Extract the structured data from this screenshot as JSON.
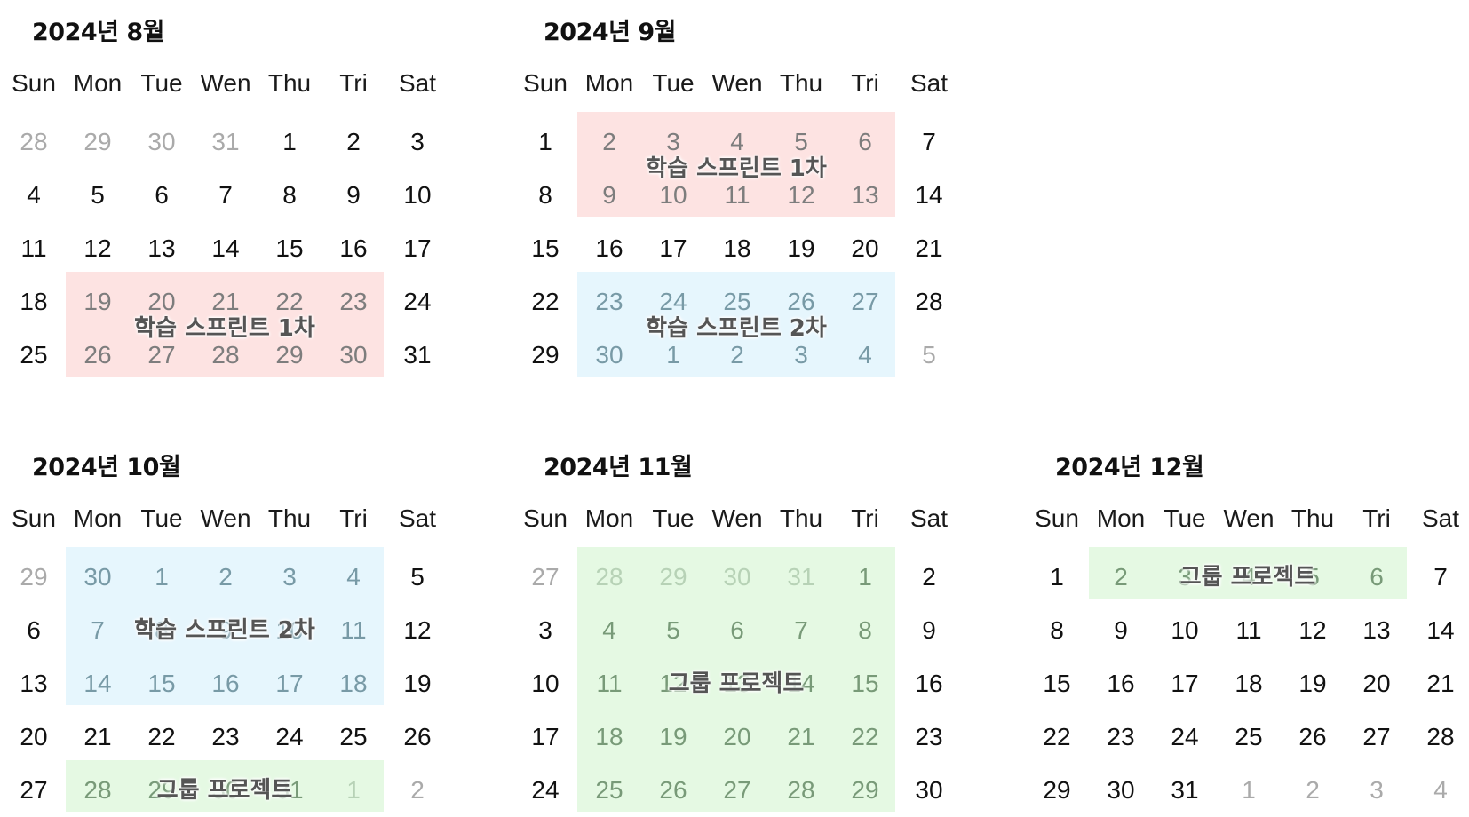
{
  "weekdays": [
    "Sun",
    "Mon",
    "Tue",
    "Wen",
    "Thu",
    "Tri",
    "Sat"
  ],
  "colors": {
    "red": "#fde3e2",
    "blue": "#e6f6fd",
    "green": "#e5f9e3"
  },
  "months": [
    {
      "title": "2024년 8월",
      "weeks": [
        [
          {
            "n": "28",
            "o": true
          },
          {
            "n": "29",
            "o": true
          },
          {
            "n": "30",
            "o": true
          },
          {
            "n": "31",
            "o": true
          },
          {
            "n": "1"
          },
          {
            "n": "2"
          },
          {
            "n": "3"
          }
        ],
        [
          {
            "n": "4"
          },
          {
            "n": "5"
          },
          {
            "n": "6"
          },
          {
            "n": "7"
          },
          {
            "n": "8"
          },
          {
            "n": "9"
          },
          {
            "n": "10"
          }
        ],
        [
          {
            "n": "11"
          },
          {
            "n": "12"
          },
          {
            "n": "13"
          },
          {
            "n": "14"
          },
          {
            "n": "15"
          },
          {
            "n": "16"
          },
          {
            "n": "17"
          }
        ],
        [
          {
            "n": "18"
          },
          {
            "n": "19"
          },
          {
            "n": "20"
          },
          {
            "n": "21"
          },
          {
            "n": "22"
          },
          {
            "n": "23"
          },
          {
            "n": "24"
          }
        ],
        [
          {
            "n": "25"
          },
          {
            "n": "26"
          },
          {
            "n": "27"
          },
          {
            "n": "28"
          },
          {
            "n": "29"
          },
          {
            "n": "30"
          },
          {
            "n": "31"
          }
        ]
      ],
      "events": [
        {
          "label": "학습 스프린트 1차",
          "color": "red",
          "row_start": 3,
          "row_end": 4,
          "col_start": 1,
          "col_end": 5
        }
      ]
    },
    {
      "title": "2024년 9월",
      "weeks": [
        [
          {
            "n": "1"
          },
          {
            "n": "2"
          },
          {
            "n": "3"
          },
          {
            "n": "4"
          },
          {
            "n": "5"
          },
          {
            "n": "6"
          },
          {
            "n": "7"
          }
        ],
        [
          {
            "n": "8"
          },
          {
            "n": "9"
          },
          {
            "n": "10"
          },
          {
            "n": "11"
          },
          {
            "n": "12"
          },
          {
            "n": "13"
          },
          {
            "n": "14"
          }
        ],
        [
          {
            "n": "15"
          },
          {
            "n": "16"
          },
          {
            "n": "17"
          },
          {
            "n": "18"
          },
          {
            "n": "19"
          },
          {
            "n": "20"
          },
          {
            "n": "21"
          }
        ],
        [
          {
            "n": "22"
          },
          {
            "n": "23"
          },
          {
            "n": "24"
          },
          {
            "n": "25"
          },
          {
            "n": "26"
          },
          {
            "n": "27"
          },
          {
            "n": "28"
          }
        ],
        [
          {
            "n": "29"
          },
          {
            "n": "30"
          },
          {
            "n": "1",
            "o": true
          },
          {
            "n": "2",
            "o": true
          },
          {
            "n": "3",
            "o": true
          },
          {
            "n": "4",
            "o": true
          },
          {
            "n": "5",
            "o": true
          }
        ]
      ],
      "events": [
        {
          "label": "학습 스프린트 1차",
          "color": "red",
          "row_start": 0,
          "row_end": 1,
          "col_start": 1,
          "col_end": 5
        },
        {
          "label": "학습 스프린트 2차",
          "color": "blue",
          "row_start": 3,
          "row_end": 4,
          "col_start": 1,
          "col_end": 5
        }
      ]
    },
    {
      "title": "2024년 10월",
      "weeks": [
        [
          {
            "n": "29",
            "o": true
          },
          {
            "n": "30",
            "o": true
          },
          {
            "n": "1"
          },
          {
            "n": "2"
          },
          {
            "n": "3"
          },
          {
            "n": "4"
          },
          {
            "n": "5"
          }
        ],
        [
          {
            "n": "6"
          },
          {
            "n": "7"
          },
          {
            "n": "8"
          },
          {
            "n": "9"
          },
          {
            "n": "10"
          },
          {
            "n": "11"
          },
          {
            "n": "12"
          }
        ],
        [
          {
            "n": "13"
          },
          {
            "n": "14"
          },
          {
            "n": "15"
          },
          {
            "n": "16"
          },
          {
            "n": "17"
          },
          {
            "n": "18"
          },
          {
            "n": "19"
          }
        ],
        [
          {
            "n": "20"
          },
          {
            "n": "21"
          },
          {
            "n": "22"
          },
          {
            "n": "23"
          },
          {
            "n": "24"
          },
          {
            "n": "25"
          },
          {
            "n": "26"
          }
        ],
        [
          {
            "n": "27"
          },
          {
            "n": "28"
          },
          {
            "n": "29"
          },
          {
            "n": "30"
          },
          {
            "n": "31"
          },
          {
            "n": "1",
            "o": true
          },
          {
            "n": "2",
            "o": true
          }
        ]
      ],
      "events": [
        {
          "label": "학습 스프린트 2차",
          "color": "blue",
          "row_start": 0,
          "row_end": 2,
          "col_start": 1,
          "col_end": 5
        },
        {
          "label": "그룹 프로젝트",
          "color": "green",
          "row_start": 4,
          "row_end": 4,
          "col_start": 1,
          "col_end": 5
        }
      ]
    },
    {
      "title": "2024년 11월",
      "weeks": [
        [
          {
            "n": "27",
            "o": true
          },
          {
            "n": "28",
            "o": true
          },
          {
            "n": "29",
            "o": true
          },
          {
            "n": "30",
            "o": true
          },
          {
            "n": "31",
            "o": true
          },
          {
            "n": "1"
          },
          {
            "n": "2"
          }
        ],
        [
          {
            "n": "3"
          },
          {
            "n": "4"
          },
          {
            "n": "5"
          },
          {
            "n": "6"
          },
          {
            "n": "7"
          },
          {
            "n": "8"
          },
          {
            "n": "9"
          }
        ],
        [
          {
            "n": "10"
          },
          {
            "n": "11"
          },
          {
            "n": "12"
          },
          {
            "n": "13"
          },
          {
            "n": "14"
          },
          {
            "n": "15"
          },
          {
            "n": "16"
          }
        ],
        [
          {
            "n": "17"
          },
          {
            "n": "18"
          },
          {
            "n": "19"
          },
          {
            "n": "20"
          },
          {
            "n": "21"
          },
          {
            "n": "22"
          },
          {
            "n": "23"
          }
        ],
        [
          {
            "n": "24"
          },
          {
            "n": "25"
          },
          {
            "n": "26"
          },
          {
            "n": "27"
          },
          {
            "n": "28"
          },
          {
            "n": "29"
          },
          {
            "n": "30"
          }
        ]
      ],
      "events": [
        {
          "label": "그룹 프로젝트",
          "color": "green",
          "row_start": 0,
          "row_end": 4,
          "col_start": 1,
          "col_end": 5
        }
      ]
    },
    {
      "title": "2024년 12월",
      "weeks": [
        [
          {
            "n": "1"
          },
          {
            "n": "2"
          },
          {
            "n": "3"
          },
          {
            "n": "4"
          },
          {
            "n": "5"
          },
          {
            "n": "6"
          },
          {
            "n": "7"
          }
        ],
        [
          {
            "n": "8"
          },
          {
            "n": "9"
          },
          {
            "n": "10"
          },
          {
            "n": "11"
          },
          {
            "n": "12"
          },
          {
            "n": "13"
          },
          {
            "n": "14"
          }
        ],
        [
          {
            "n": "15"
          },
          {
            "n": "16"
          },
          {
            "n": "17"
          },
          {
            "n": "18"
          },
          {
            "n": "19"
          },
          {
            "n": "20"
          },
          {
            "n": "21"
          }
        ],
        [
          {
            "n": "22"
          },
          {
            "n": "23"
          },
          {
            "n": "24"
          },
          {
            "n": "25"
          },
          {
            "n": "26"
          },
          {
            "n": "27"
          },
          {
            "n": "28"
          }
        ],
        [
          {
            "n": "29"
          },
          {
            "n": "30"
          },
          {
            "n": "31"
          },
          {
            "n": "1",
            "o": true
          },
          {
            "n": "2",
            "o": true
          },
          {
            "n": "3",
            "o": true
          },
          {
            "n": "4",
            "o": true
          }
        ]
      ],
      "events": [
        {
          "label": "그룹 프로젝트",
          "color": "green",
          "row_start": 0,
          "row_end": 0,
          "col_start": 1,
          "col_end": 5
        }
      ]
    }
  ]
}
